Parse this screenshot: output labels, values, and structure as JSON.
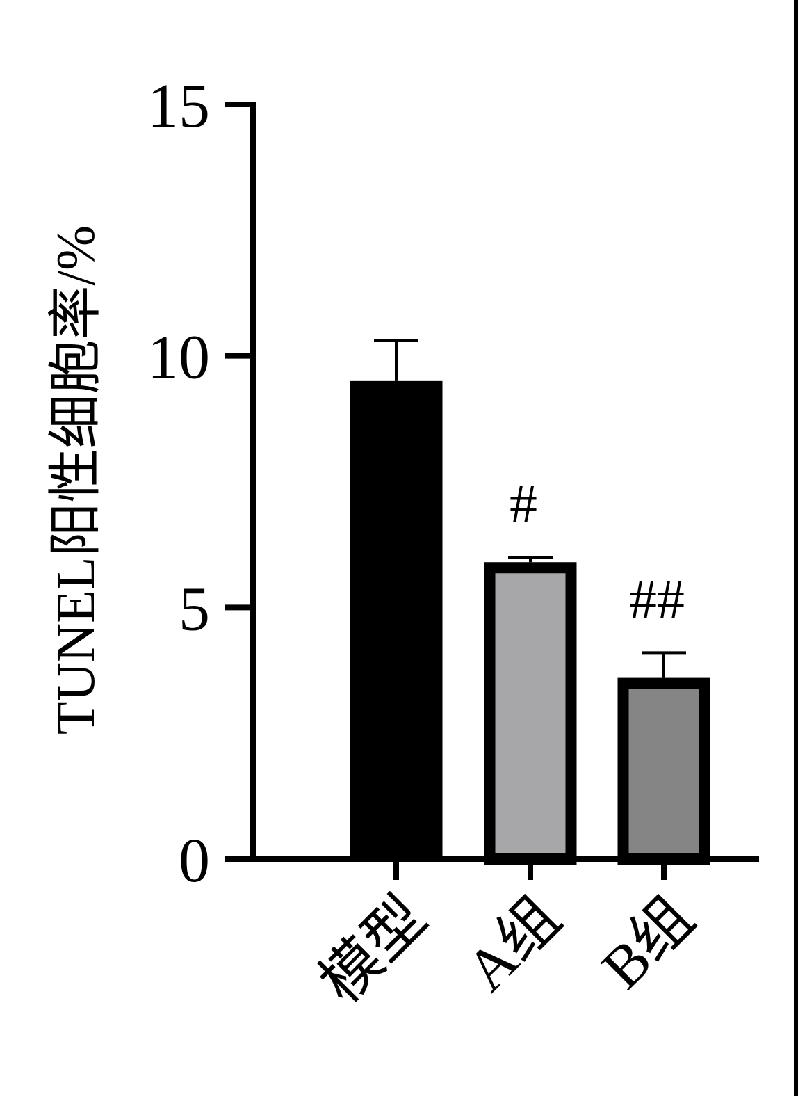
{
  "chart_data": {
    "type": "bar",
    "title": "",
    "xlabel": "",
    "ylabel": "TUNEL阳性细胞率/%",
    "ylim": [
      0,
      15
    ],
    "yticks": [
      0,
      5,
      10,
      15
    ],
    "ytick_labels": [
      "0",
      "5",
      "10",
      "15"
    ],
    "categories": [
      "模型",
      "A组",
      "B组"
    ],
    "values": [
      9.5,
      5.9,
      3.6
    ],
    "errors": [
      0.8,
      0.1,
      0.5
    ],
    "significance": [
      "",
      "#",
      "##"
    ],
    "colors": {
      "fills": [
        "#000000",
        "#a7a7aa",
        "#858585"
      ],
      "outline": "#000000",
      "axis": "#000000"
    },
    "grid": false,
    "legend": "none"
  }
}
